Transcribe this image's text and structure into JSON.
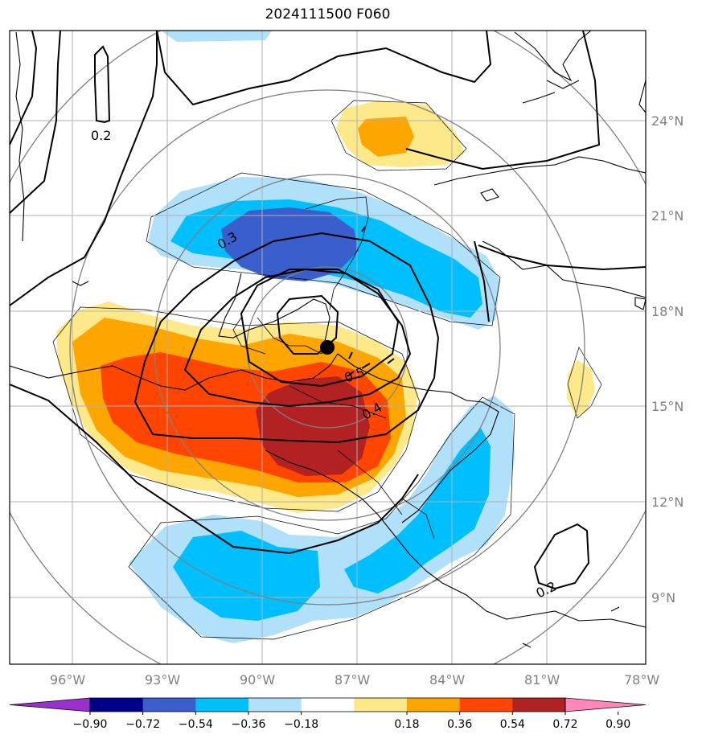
{
  "title": "2024111500 F060",
  "map": {
    "lon_labels": [
      "96°W",
      "93°W",
      "90°W",
      "87°W",
      "84°W",
      "81°W",
      "78°W"
    ],
    "lat_labels": [
      "24°N",
      "21°N",
      "18°N",
      "15°N",
      "12°N",
      "9°N"
    ],
    "contour_labels": [
      "0.2",
      "0.3",
      "0.5",
      "0.4",
      "0.2"
    ],
    "fill_colors": {
      "neg_090": "#9932cc",
      "neg_072": "#00008b",
      "neg_054": "#3a5fcd",
      "neg_036": "#00bfff",
      "neg_018": "#b0e0fa",
      "zero": "#ffffff",
      "pos_018": "#fde98a",
      "pos_036": "#ffa500",
      "pos_054": "#ff4500",
      "pos_072": "#b22222",
      "pos_090": "#ff88b8"
    }
  },
  "colorbar": {
    "ticks": [
      "−0.90",
      "−0.72",
      "−0.54",
      "−0.36",
      "−0.18",
      "0.18",
      "0.36",
      "0.54",
      "0.72",
      "0.90"
    ],
    "colors": [
      "#9932cc",
      "#00008b",
      "#3a5fcd",
      "#00bfff",
      "#b0e0fa",
      "#ffffff",
      "#fde98a",
      "#ffa500",
      "#ff4500",
      "#b22222",
      "#ff88b8"
    ]
  }
}
